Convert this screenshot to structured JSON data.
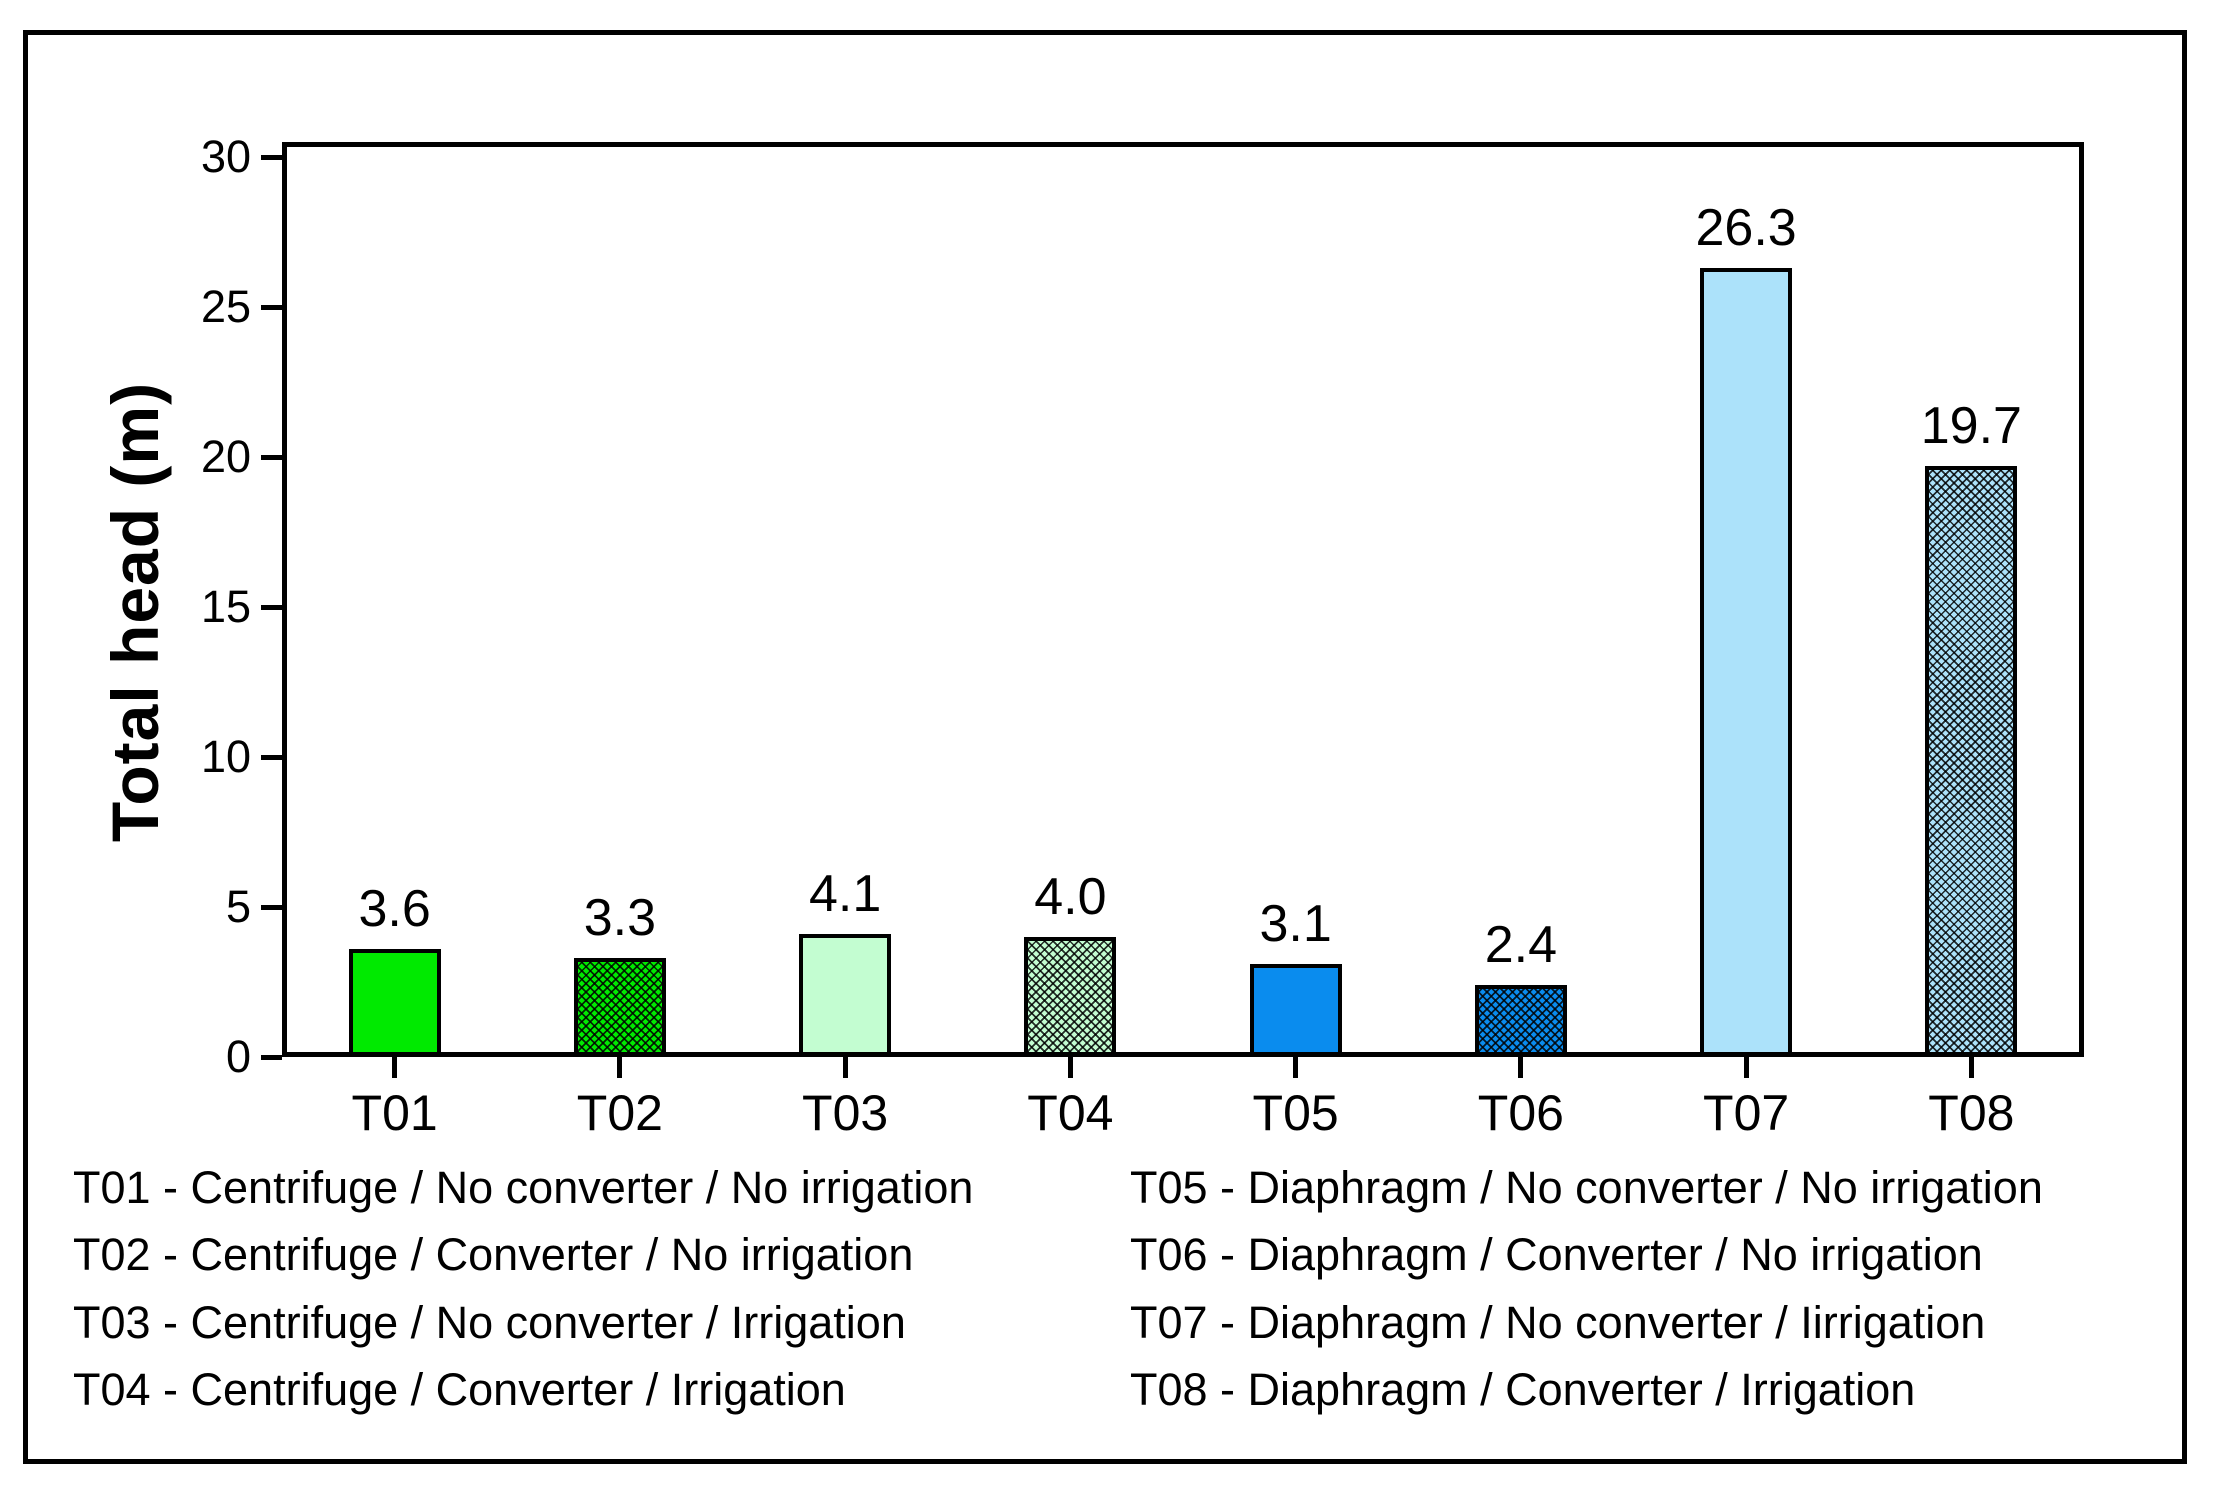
{
  "figure": {
    "background": "#ffffff",
    "border_color": "#000000"
  },
  "chart_data": {
    "type": "bar",
    "title": "",
    "xlabel": "",
    "ylabel": "Total head (m)",
    "categories": [
      "T01",
      "T02",
      "T03",
      "T04",
      "T05",
      "T06",
      "T07",
      "T08"
    ],
    "values": [
      3.6,
      3.3,
      4.1,
      4.0,
      3.1,
      2.4,
      26.3,
      19.7
    ],
    "value_labels": [
      "3.6",
      "3.3",
      "4.1",
      "4.0",
      "3.1",
      "2.4",
      "26.3",
      "19.7"
    ],
    "bar_colors": [
      "#00ea00",
      "#00ea00",
      "#c3fdd1",
      "#c3fdd1",
      "#0a8cee",
      "#0a8cee",
      "#ace2fa",
      "#ace2fa"
    ],
    "bar_hatched": [
      false,
      true,
      false,
      true,
      false,
      true,
      false,
      true
    ],
    "bar_border_color": "#000000",
    "ylim": [
      0,
      30.5
    ],
    "yticks": [
      0,
      5,
      10,
      15,
      20,
      25,
      30
    ],
    "grid": false,
    "legend_position": "below-chart-text"
  },
  "legend": {
    "left": [
      "T01 - Centrifuge / No converter / No irrigation",
      "T02 - Centrifuge / Converter / No irrigation",
      "T03 - Centrifuge / No converter / Irrigation",
      "T04 - Centrifuge / Converter / Irrigation"
    ],
    "right": [
      "T05 - Diaphragm / No converter / No irrigation",
      "T06 - Diaphragm / Converter / No irrigation",
      "T07 - Diaphragm / No converter / Iirrigation",
      "T08 - Diaphragm / Converter / Irrigation"
    ]
  }
}
